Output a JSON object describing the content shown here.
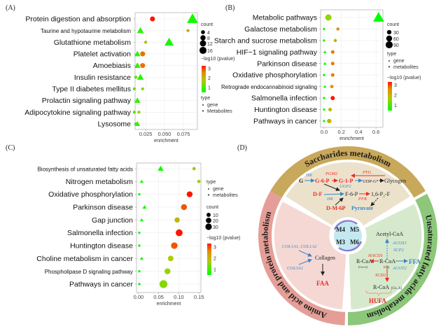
{
  "panel_labels": {
    "a": "(A)",
    "b": "(B)",
    "c": "(C)",
    "d": "(D)"
  },
  "chart_data": [
    {
      "panel": "(A)",
      "type": "scatter",
      "xlabel": "enrichment",
      "ylabel": "",
      "xlim": [
        0.011,
        0.0935
      ],
      "xticks": [
        0.025,
        0.05,
        0.075
      ],
      "xtick_labels": [
        "0.025",
        "0.050",
        "0.075"
      ],
      "grid": true,
      "categories": [
        "Protein digestion and absorption",
        "Taurine and hypotaurine metabolism",
        "Glutathione metabolism",
        "Platelet activation",
        "Amoebiasis",
        "Insulin resistance",
        "Type II diabetes mellitus",
        "Prolactin signaling pathway",
        "Adipocytokine signaling pathway",
        "Lysosome"
      ],
      "legend": {
        "placement": "right",
        "count_title": "count",
        "counts": [
          4,
          8,
          12,
          16
        ],
        "color_title": "−log10 (pvalue)",
        "color_ticks": [
          3,
          2,
          1
        ],
        "type_title": "type",
        "types": [
          "gene",
          "Metabolites"
        ]
      },
      "points": [
        {
          "cat": 0,
          "type": "gene",
          "x": 0.034,
          "count": 4,
          "p": 3.2
        },
        {
          "cat": 0,
          "type": "metabolite",
          "x": 0.087,
          "count": 16,
          "p": 0.6
        },
        {
          "cat": 1,
          "type": "metabolite",
          "x": 0.018,
          "count": 5,
          "p": 0.7
        },
        {
          "cat": 1,
          "type": "gene",
          "x": 0.081,
          "count": 1,
          "p": 1.8
        },
        {
          "cat": 2,
          "type": "gene",
          "x": 0.025,
          "count": 1,
          "p": 1.6
        },
        {
          "cat": 2,
          "type": "metabolite",
          "x": 0.056,
          "count": 10,
          "p": 0.6
        },
        {
          "cat": 3,
          "type": "metabolite",
          "x": 0.014,
          "count": 4,
          "p": 0.7
        },
        {
          "cat": 3,
          "type": "gene",
          "x": 0.021,
          "count": 4,
          "p": 2.4
        },
        {
          "cat": 4,
          "type": "metabolite",
          "x": 0.014,
          "count": 4,
          "p": 0.7
        },
        {
          "cat": 4,
          "type": "gene",
          "x": 0.021,
          "count": 4,
          "p": 2.4
        },
        {
          "cat": 5,
          "type": "gene",
          "x": 0.012,
          "count": 1,
          "p": 1.0
        },
        {
          "cat": 5,
          "type": "metabolite",
          "x": 0.018,
          "count": 5,
          "p": 0.7
        },
        {
          "cat": 6,
          "type": "gene",
          "x": 0.01,
          "count": 1,
          "p": 1.0
        },
        {
          "cat": 6,
          "type": "gene",
          "x": 0.021,
          "count": 1,
          "p": 1.2
        },
        {
          "cat": 7,
          "type": "metabolite",
          "x": 0.014,
          "count": 4,
          "p": 0.8
        },
        {
          "cat": 8,
          "type": "gene",
          "x": 0.01,
          "count": 1,
          "p": 1.0
        },
        {
          "cat": 8,
          "type": "gene",
          "x": 0.016,
          "count": 1,
          "p": 1.3
        },
        {
          "cat": 9,
          "type": "gene",
          "x": 0.012,
          "count": 1,
          "p": 0.8
        },
        {
          "cat": 9,
          "type": "metabolite",
          "x": 0.014,
          "count": 3,
          "p": 0.8
        }
      ]
    },
    {
      "panel": "(B)",
      "type": "scatter",
      "xlabel": "enrichment",
      "ylabel": "",
      "xlim": [
        -0.04,
        0.68
      ],
      "xticks": [
        0.0,
        0.2,
        0.4,
        0.6
      ],
      "xtick_labels": [
        "0.0",
        "0.2",
        "0.4",
        "0.6"
      ],
      "grid": true,
      "categories": [
        "Metabolic pathways",
        "Galactose metabolism",
        "Starch and sucrose metabolism",
        "HIF−1 signaling pathway",
        "Parkinson disease",
        "Oxidative phosphorylation",
        "Retrograde endocannabinoid signaling",
        "Salmonella infection",
        "Huntington disease",
        "Pathways in cancer"
      ],
      "legend": {
        "placement": "right",
        "count_title": "count",
        "counts": [
          30,
          60,
          90
        ],
        "type_title": "type",
        "types": [
          "gene",
          "metabolites"
        ],
        "color_title": "−log10 (pvalue)",
        "color_ticks": [
          3,
          2,
          1
        ]
      },
      "points": [
        {
          "cat": 0,
          "type": "gene",
          "x": 0.05,
          "count": 40,
          "p": 1.3
        },
        {
          "cat": 0,
          "type": "metabolite",
          "x": 0.63,
          "count": 90,
          "p": 0.5
        },
        {
          "cat": 1,
          "type": "gene",
          "x": 0.0,
          "count": 2,
          "p": 0.5
        },
        {
          "cat": 1,
          "type": "gene",
          "x": 0.16,
          "count": 6,
          "p": 2.2
        },
        {
          "cat": 2,
          "type": "gene",
          "x": 0.0,
          "count": 2,
          "p": 0.5
        },
        {
          "cat": 2,
          "type": "gene",
          "x": 0.13,
          "count": 6,
          "p": 1.8
        },
        {
          "cat": 3,
          "type": "metabolite",
          "x": 0.01,
          "count": 3,
          "p": 0.5
        },
        {
          "cat": 3,
          "type": "gene",
          "x": 0.1,
          "count": 9,
          "p": 2.3
        },
        {
          "cat": 4,
          "type": "metabolite",
          "x": 0.01,
          "count": 3,
          "p": 0.5
        },
        {
          "cat": 4,
          "type": "gene",
          "x": 0.1,
          "count": 9,
          "p": 2.3
        },
        {
          "cat": 5,
          "type": "gene",
          "x": 0.0,
          "count": 2,
          "p": 0.5
        },
        {
          "cat": 5,
          "type": "gene",
          "x": 0.1,
          "count": 9,
          "p": 2.3
        },
        {
          "cat": 6,
          "type": "metabolite",
          "x": 0.01,
          "count": 3,
          "p": 0.5
        },
        {
          "cat": 6,
          "type": "gene",
          "x": 0.09,
          "count": 8,
          "p": 2.1
        },
        {
          "cat": 7,
          "type": "gene",
          "x": 0.0,
          "count": 2,
          "p": 0.5
        },
        {
          "cat": 7,
          "type": "gene",
          "x": 0.1,
          "count": 14,
          "p": 3.2
        },
        {
          "cat": 8,
          "type": "gene",
          "x": 0.0,
          "count": 2,
          "p": 0.5
        },
        {
          "cat": 8,
          "type": "gene",
          "x": 0.07,
          "count": 10,
          "p": 1.6
        },
        {
          "cat": 9,
          "type": "gene",
          "x": 0.0,
          "count": 2,
          "p": 0.5
        },
        {
          "cat": 9,
          "type": "gene",
          "x": 0.06,
          "count": 16,
          "p": 1.7
        }
      ]
    },
    {
      "panel": "(C)",
      "type": "scatter",
      "xlabel": "enrichment",
      "ylabel": "",
      "xlim": [
        -0.005,
        0.155
      ],
      "xticks": [
        0.0,
        0.05,
        0.1,
        0.15
      ],
      "xtick_labels": [
        "0.00",
        "0.05",
        "0.10",
        "0.15"
      ],
      "grid": true,
      "categories": [
        "Biosynthesis of unsaturated fatty acids",
        "Nitrogen metabolism",
        "Oxidative phosphorylation",
        "Parkinson disease",
        "Gap junction",
        "Salmonella infection",
        "Huntington disease",
        "Choline metabolism in cancer",
        "Phospholipase D signaling pathway",
        "Pathways in cancer"
      ],
      "legend": {
        "placement": "right",
        "type_title": "type",
        "types": [
          "gene",
          "metabolites"
        ],
        "count_title": "count",
        "counts": [
          10,
          20,
          30
        ],
        "color_title": "−log10 (pvalue)",
        "color_ticks": [
          3,
          2,
          1
        ]
      },
      "points": [
        {
          "cat": 0,
          "type": "metabolite",
          "x": 0.055,
          "count": 8,
          "p": 0.6
        },
        {
          "cat": 0,
          "type": "gene",
          "x": 0.138,
          "count": 3,
          "p": 1.6
        },
        {
          "cat": 1,
          "type": "metabolite",
          "x": 0.008,
          "count": 2,
          "p": 0.6
        },
        {
          "cat": 1,
          "type": "gene",
          "x": 0.15,
          "count": 3,
          "p": 1.3
        },
        {
          "cat": 2,
          "type": "gene",
          "x": 0.002,
          "count": 1,
          "p": 0.5
        },
        {
          "cat": 2,
          "type": "gene",
          "x": 0.127,
          "count": 14,
          "p": 3.2
        },
        {
          "cat": 3,
          "type": "metabolite",
          "x": 0.015,
          "count": 3,
          "p": 0.6
        },
        {
          "cat": 3,
          "type": "gene",
          "x": 0.113,
          "count": 14,
          "p": 2.6
        },
        {
          "cat": 4,
          "type": "metabolite",
          "x": 0.008,
          "count": 2,
          "p": 0.6
        },
        {
          "cat": 4,
          "type": "gene",
          "x": 0.096,
          "count": 10,
          "p": 1.7
        },
        {
          "cat": 5,
          "type": "gene",
          "x": 0.002,
          "count": 1,
          "p": 0.5
        },
        {
          "cat": 5,
          "type": "gene",
          "x": 0.101,
          "count": 20,
          "p": 3.3
        },
        {
          "cat": 6,
          "type": "gene",
          "x": 0.002,
          "count": 1,
          "p": 0.5
        },
        {
          "cat": 6,
          "type": "gene",
          "x": 0.089,
          "count": 18,
          "p": 2.6
        },
        {
          "cat": 7,
          "type": "metabolite",
          "x": 0.008,
          "count": 2,
          "p": 0.6
        },
        {
          "cat": 7,
          "type": "gene",
          "x": 0.08,
          "count": 12,
          "p": 1.4
        },
        {
          "cat": 8,
          "type": "gene",
          "x": 0.002,
          "count": 1,
          "p": 0.5
        },
        {
          "cat": 8,
          "type": "gene",
          "x": 0.072,
          "count": 14,
          "p": 1.3
        },
        {
          "cat": 9,
          "type": "gene",
          "x": 0.002,
          "count": 1,
          "p": 0.5
        },
        {
          "cat": 9,
          "type": "gene",
          "x": 0.062,
          "count": 28,
          "p": 1.2
        }
      ]
    }
  ],
  "diagram": {
    "sectors": {
      "top": "Saccharides metabolism",
      "left": "Amino acid and protein metabolism",
      "right": "Unsaturated fatty acids metabolism"
    },
    "center": [
      "M4",
      "M5",
      "M3",
      "M6"
    ],
    "saccharides": {
      "g": "G",
      "hk1": "HK",
      "g6p": "G-6-P",
      "pgm2": "PGM2",
      "g1p": "G-1-P",
      "ugp2": "UGP2",
      "udpg": "UDP-G",
      "glycogen": "Glycogen",
      "pyg": "PYG",
      "df": "D-F",
      "hk2": "HK",
      "f6p": "F-6-P",
      "pfk": "PFK",
      "f16": "1,6-P₂-F",
      "dm6p": "D-M-6P",
      "pyruvate": "Pyruvate"
    },
    "amino": {
      "col1": "COL1A1, COL1A2",
      "col3": "COL3A1",
      "collagen": "Collagen",
      "faa": "FAA"
    },
    "fatty": {
      "acetyl": "Acetyl-CoA",
      "acox1": "ACOX1",
      "scp2": "SCP2",
      "hacd1": "HACD1",
      "rcoa1": "R-CoA",
      "cn2": "[Cn+2]",
      "rcoa2": "R-CoA",
      "cn": "[Cn]",
      "ffa": "FFA",
      "acot2": "ACOT2",
      "scd1": "SCD1",
      "rcoa3": "R-CoA",
      "cnd": "[Cn, Δ]",
      "hufa": "HUFA"
    },
    "colors": {
      "top_fill": "#ece2cc",
      "top_ribbon": "#c8a85a",
      "left_fill": "#f5d8d4",
      "left_ribbon": "#e59e97",
      "right_fill": "#d6e9cd",
      "right_ribbon": "#8cc77a",
      "center": "#c4e8f2",
      "red": "#ee2a24",
      "blue": "#3a86c8"
    }
  }
}
